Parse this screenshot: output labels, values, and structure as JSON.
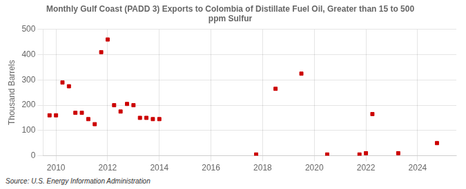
{
  "chart_data": {
    "type": "scatter",
    "title": "Monthly Gulf Coast (PADD 3) Exports to Colombia of Distillate Fuel Oil, Greater than 15 to 500\nppm Sulfur",
    "y_label": "Thousand Barrels",
    "annotations": [
      "Source: U.S. Energy Information Administration"
    ],
    "x": [
      2009.75,
      2010.0,
      2010.25,
      2010.5,
      2010.75,
      2011.0,
      2011.25,
      2011.5,
      2011.75,
      2012.0,
      2012.25,
      2012.5,
      2012.75,
      2013.0,
      2013.25,
      2013.5,
      2013.75,
      2014.0,
      2017.75,
      2018.5,
      2019.5,
      2020.5,
      2021.75,
      2022.0,
      2022.25,
      2023.25,
      2024.75
    ],
    "values": [
      160,
      160,
      290,
      275,
      170,
      170,
      145,
      125,
      410,
      460,
      200,
      175,
      205,
      200,
      150,
      150,
      145,
      145,
      5,
      265,
      325,
      5,
      5,
      10,
      165,
      10,
      50
    ],
    "color": "#cc0000",
    "marker": "square",
    "xlim": [
      2009.5,
      2025.5
    ],
    "xticks": [
      2010,
      2012,
      2014,
      2016,
      2018,
      2020,
      2022,
      2024
    ],
    "ylim": [
      0,
      500
    ],
    "yticks": [
      0,
      100,
      200,
      300,
      400,
      500
    ],
    "grid": true
  }
}
